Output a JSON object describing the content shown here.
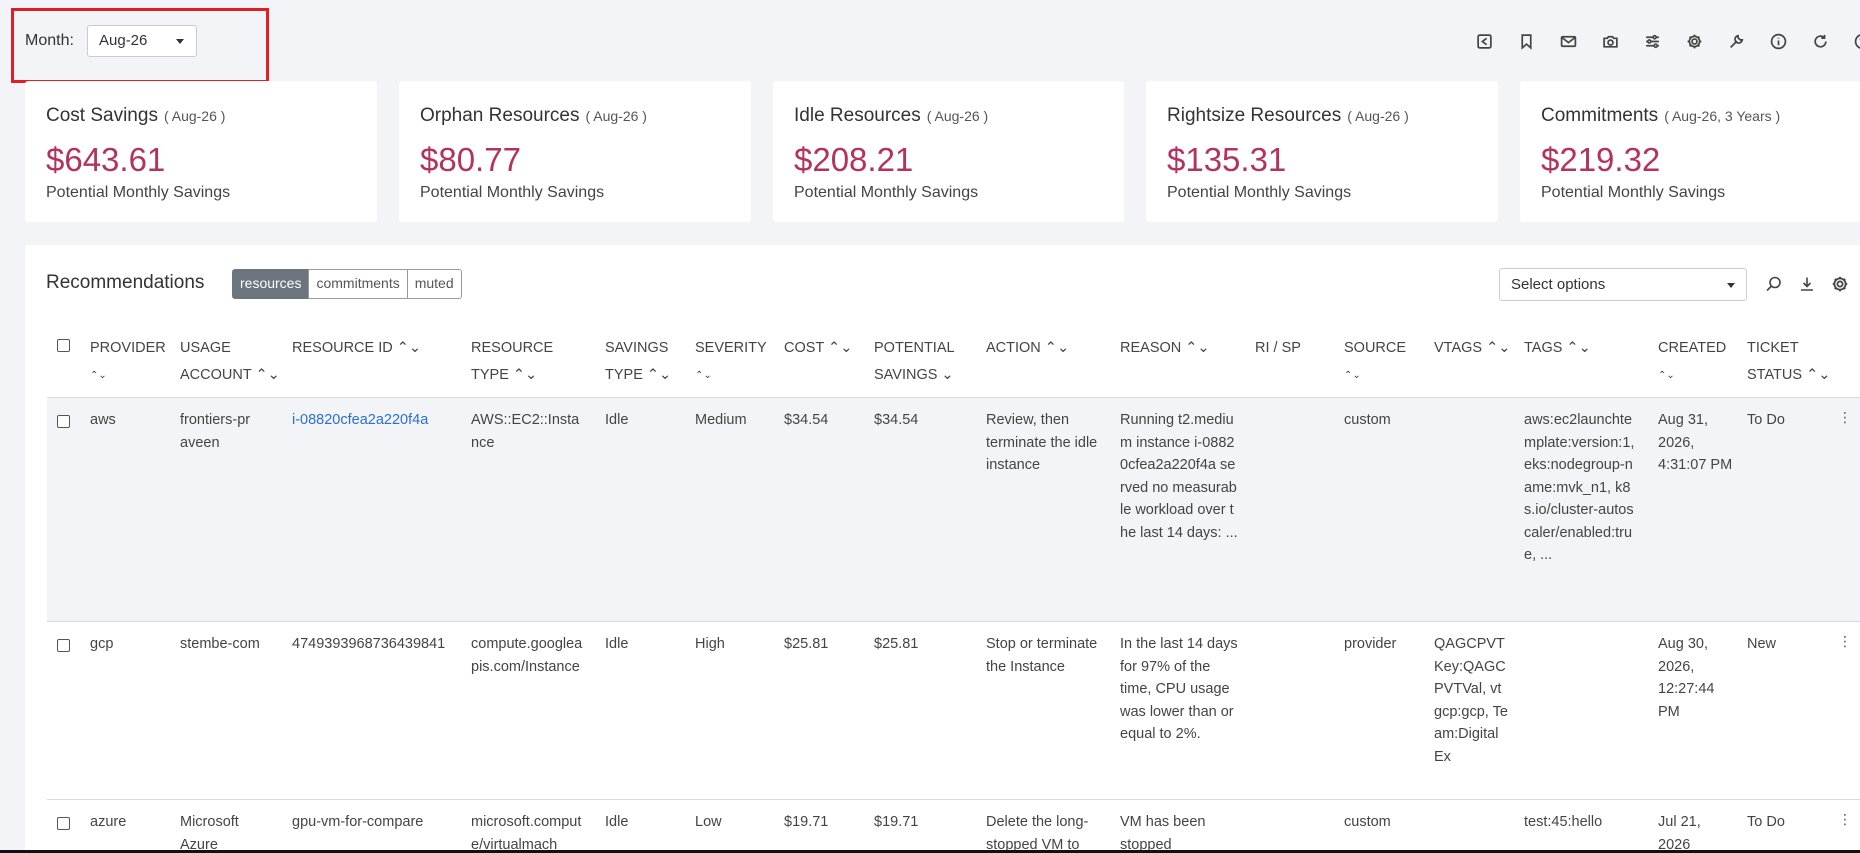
{
  "header": {
    "month_label": "Month:",
    "month_value": "Aug-26",
    "toolbar_icons": [
      "share-icon",
      "bookmark-icon",
      "mail-icon",
      "camera-icon",
      "sliders-icon",
      "gear-icon",
      "wrench-icon",
      "info-icon",
      "refresh-icon",
      "help-icon"
    ]
  },
  "cards": [
    {
      "title": "Cost Savings",
      "sub": "( Aug-26 )",
      "value": "$643.61",
      "caption": "Potential Monthly Savings"
    },
    {
      "title": "Orphan Resources",
      "sub": "( Aug-26 )",
      "value": "$80.77",
      "caption": "Potential Monthly Savings"
    },
    {
      "title": "Idle Resources",
      "sub": "( Aug-26 )",
      "value": "$208.21",
      "caption": "Potential Monthly Savings"
    },
    {
      "title": "Rightsize Resources",
      "sub": "( Aug-26 )",
      "value": "$135.31",
      "caption": "Potential Monthly Savings"
    },
    {
      "title": "Commitments",
      "sub": "( Aug-26, 3 Years )",
      "value": "$219.32",
      "caption": "Potential Monthly Savings"
    }
  ],
  "recommendations": {
    "title": "Recommendations",
    "tabs": [
      "resources",
      "commitments",
      "muted"
    ],
    "active_tab": "resources",
    "select_placeholder": "Select options"
  },
  "table": {
    "columns": {
      "provider": [
        "PROVIDER",
        "⌃⌄"
      ],
      "usage_account": [
        "USAGE",
        "ACCOUNT ⌃⌄"
      ],
      "resource_id": [
        "RESOURCE ID ⌃⌄",
        ""
      ],
      "resource_type": [
        "RESOURCE",
        "TYPE ⌃⌄"
      ],
      "savings_type": [
        "SAVINGS",
        "TYPE ⌃⌄"
      ],
      "severity": [
        "SEVERITY",
        "⌃⌄"
      ],
      "cost": [
        "COST ⌃⌄",
        ""
      ],
      "potential_savings": [
        "POTENTIAL",
        "SAVINGS ⌄"
      ],
      "action": [
        "ACTION ⌃⌄",
        ""
      ],
      "reason": [
        "REASON ⌃⌄",
        ""
      ],
      "ri_sp": [
        "RI / SP",
        ""
      ],
      "source": [
        "SOURCE",
        "⌃⌄"
      ],
      "vtags": [
        "VTAGS ⌃⌄",
        ""
      ],
      "tags": [
        "TAGS ⌃⌄",
        ""
      ],
      "created": [
        "CREATED",
        "⌃⌄"
      ],
      "ticket_status": [
        "TICKET",
        "STATUS ⌃⌄"
      ]
    },
    "rows": [
      {
        "provider": "aws",
        "usage_account": "frontiers-praveen",
        "resource_id": "i-08820cfea2a220f4a",
        "resource_type": "AWS::EC2::Instance",
        "savings_type": "Idle",
        "severity": "Medium",
        "cost": "$34.54",
        "potential_savings": "$34.54",
        "action": "Review, then terminate the idle instance",
        "reason": "Running t2.medium instance i-08820cfea2a220f4a served no measurable workload over the last 14 days: ...",
        "ri_sp": "",
        "source": "custom",
        "vtags": "",
        "tags": "aws:ec2launchtemplate:version:1, eks:nodegroup-name:mvk_n1, k8s.io/cluster-autoscaler/enabled:true, ...",
        "created": "Aug 31, 2026, 4:31:07 PM",
        "ticket_status": "To Do"
      },
      {
        "provider": "gcp",
        "usage_account": "stembe-com",
        "resource_id": "474939396873643984​1",
        "resource_type": "compute.googleapis.com/Instance",
        "savings_type": "Idle",
        "severity": "High",
        "cost": "$25.81",
        "potential_savings": "$25.81",
        "action": "Stop or terminate the Instance",
        "reason": "In the last 14 days for 97% of the time, CPU usage was lower than or equal to 2%.",
        "ri_sp": "",
        "source": "provider",
        "vtags": "QAGCPVTKey:QAGCPVTVal, vtgcp:gcp, Team:DigitalEx",
        "tags": "",
        "created": "Aug 30, 2026, 12:27:44 PM",
        "ticket_status": "New"
      },
      {
        "provider": "azure",
        "usage_account": "Microsoft Azure",
        "resource_id": "gpu-vm-for-compare",
        "resource_type": "microsoft.compute/virtualmach",
        "savings_type": "Idle",
        "severity": "Low",
        "cost": "$19.71",
        "potential_savings": "$19.71",
        "action": "Delete the long-stopped VM to",
        "reason": "VM has been stopped",
        "ri_sp": "",
        "source": "custom",
        "vtags": "",
        "tags": "test:45:hello",
        "created": "Jul 21, 2026",
        "ticket_status": "To Do"
      }
    ]
  }
}
